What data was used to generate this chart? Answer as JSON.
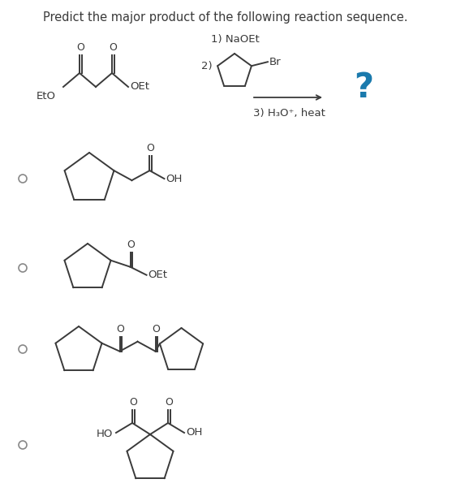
{
  "title": "Predict the major product of the following reaction sequence.",
  "title_color": "#3a3a3a",
  "bg_color": "#ffffff",
  "step1": "1) NaOEt",
  "step2_prefix": "2)",
  "step3": "3) H₃O⁺, heat",
  "br_label": "Br",
  "question_mark": "?",
  "question_color": "#1a7aad",
  "line_color": "#3a3a3a",
  "radio_color": "#888888",
  "oh_label": "OH",
  "oet_label": "OEt",
  "eto_label": "EtO",
  "ho_label": "HO",
  "o_label": "O"
}
